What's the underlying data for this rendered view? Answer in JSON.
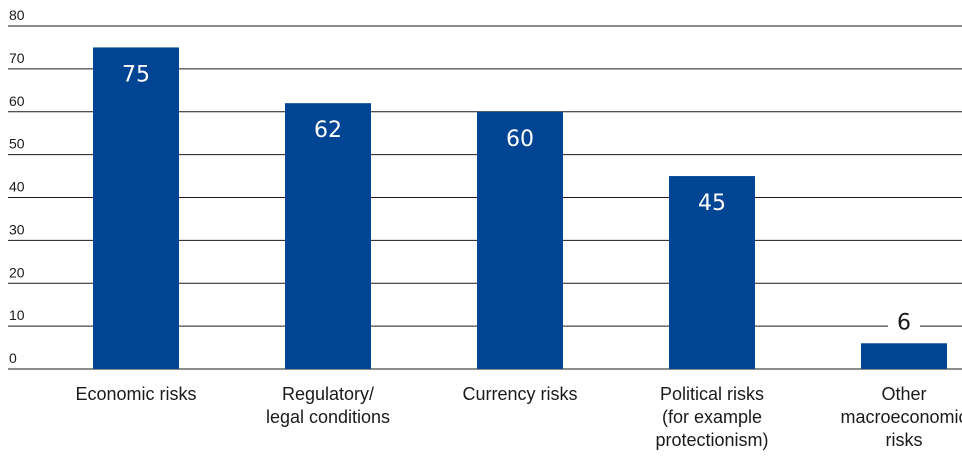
{
  "chart_data": {
    "type": "bar",
    "categories": [
      [
        "Economic risks"
      ],
      [
        "Regulatory/",
        "legal conditions"
      ],
      [
        "Currency risks"
      ],
      [
        "Political risks",
        "(for example",
        "protectionism)"
      ],
      [
        "Other",
        "macroeconomic",
        "risks"
      ]
    ],
    "values": [
      75,
      62,
      60,
      45,
      6
    ],
    "data_labels": [
      "75",
      "62",
      "60",
      "45",
      "6"
    ],
    "yticks": [
      "0",
      "10",
      "20",
      "30",
      "40",
      "50",
      "60",
      "70",
      "80"
    ],
    "ylim": [
      0,
      80
    ],
    "grid": true,
    "bar_color": "#004494",
    "title": "",
    "xlabel": "",
    "ylabel": ""
  }
}
